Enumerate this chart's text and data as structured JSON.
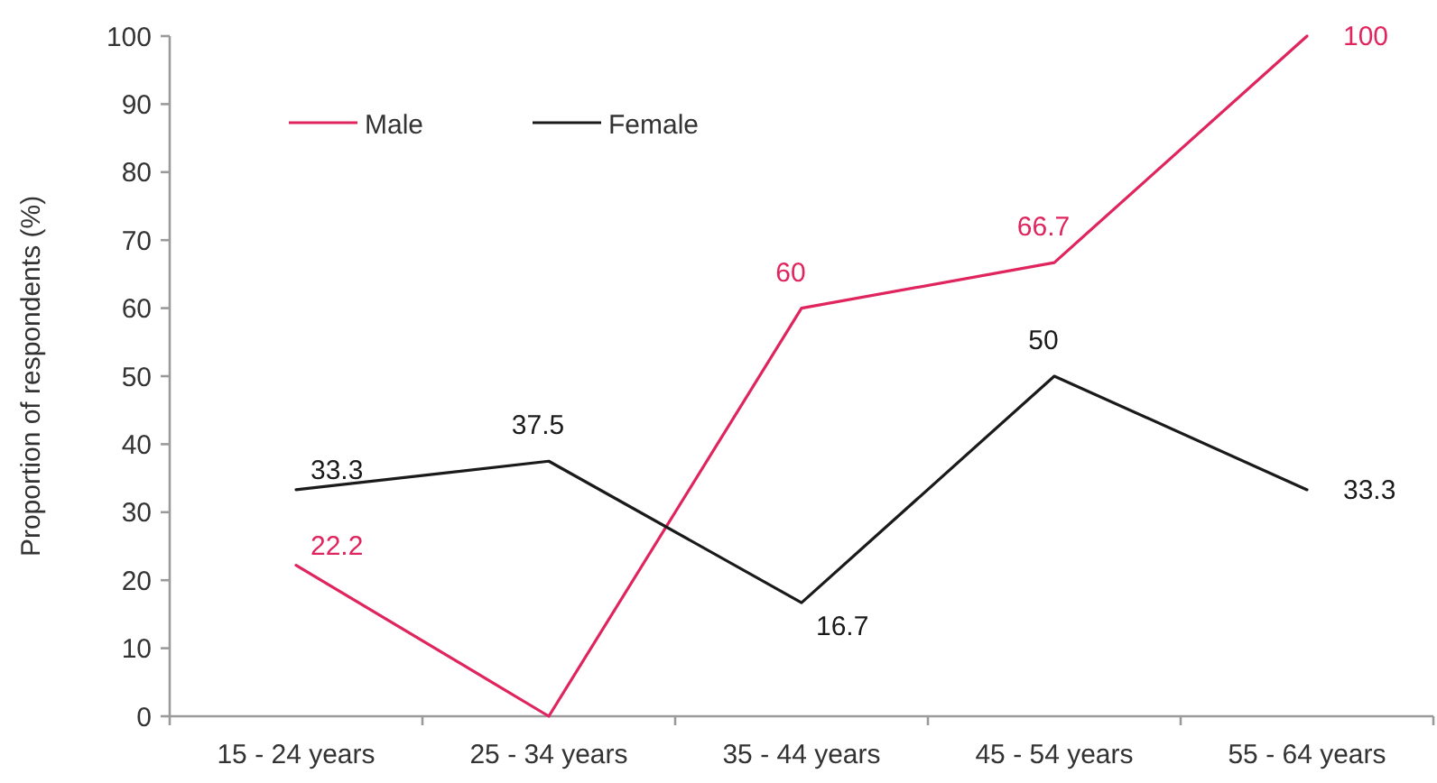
{
  "chart_data": {
    "type": "line",
    "ylabel": "Proportion of respondents (%)",
    "categories": [
      "15 - 24 years",
      "25 - 34 years",
      "35 - 44 years",
      "45 - 54 years",
      "55 - 64 years"
    ],
    "series": [
      {
        "name": "Male",
        "color": "#e0245e",
        "values": [
          22.2,
          0,
          60,
          66.7,
          100
        ],
        "value_labels": [
          "22.2",
          null,
          "60",
          "66.7",
          "100"
        ]
      },
      {
        "name": "Female",
        "color": "#1a1a1a",
        "values": [
          33.3,
          37.5,
          16.7,
          50,
          33.3
        ],
        "value_labels": [
          "33.3",
          "37.5",
          "16.7",
          "50",
          "33.3"
        ]
      }
    ],
    "ylim": [
      0,
      100
    ],
    "yticks": [
      0,
      10,
      20,
      30,
      40,
      50,
      60,
      70,
      80,
      90,
      100
    ],
    "grid": false,
    "legend": "top left",
    "marker": "none",
    "line_style": "solid"
  }
}
